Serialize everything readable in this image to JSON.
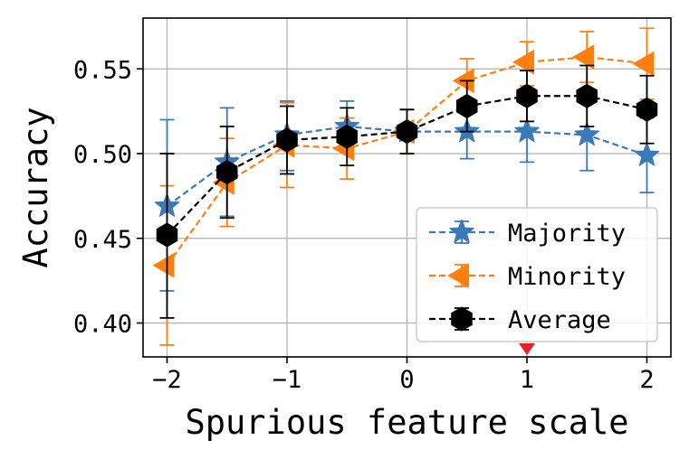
{
  "chart_data": {
    "type": "line",
    "xlabel": "Spurious feature scale",
    "ylabel": "Accuracy",
    "xlim": [
      -2.2,
      2.2
    ],
    "ylim": [
      0.38,
      0.58
    ],
    "x_ticks": [
      -2,
      -1,
      0,
      1,
      2
    ],
    "x_tick_labels": [
      "−2",
      "−1",
      "0",
      "1",
      "2"
    ],
    "y_ticks": [
      0.4,
      0.45,
      0.5,
      0.55
    ],
    "y_tick_labels": [
      "0.40",
      "0.45",
      "0.50",
      "0.55"
    ],
    "grid": true,
    "legend_position": "lower-right",
    "x": [
      -2,
      -1.5,
      -1,
      -0.5,
      0,
      0.5,
      1,
      1.5,
      2
    ],
    "series": [
      {
        "name": "Majority",
        "color": "#3a7ab8",
        "marker": "star",
        "values": [
          0.469,
          0.495,
          0.511,
          0.516,
          0.513,
          0.513,
          0.513,
          0.511,
          0.499
        ],
        "err_low": [
          0.419,
          0.463,
          0.49,
          0.501,
          0.5,
          0.497,
          0.495,
          0.49,
          0.477
        ],
        "err_high": [
          0.52,
          0.527,
          0.531,
          0.531,
          0.526,
          0.529,
          0.531,
          0.531,
          0.521
        ]
      },
      {
        "name": "Minority",
        "color": "#ff7f0e",
        "marker": "triangle-left",
        "values": [
          0.434,
          0.483,
          0.505,
          0.503,
          0.513,
          0.543,
          0.554,
          0.557,
          0.553
        ],
        "err_low": [
          0.387,
          0.457,
          0.48,
          0.485,
          0.5,
          0.53,
          0.54,
          0.542,
          0.532
        ],
        "err_high": [
          0.481,
          0.509,
          0.53,
          0.521,
          0.526,
          0.556,
          0.566,
          0.572,
          0.574
        ]
      },
      {
        "name": "Average",
        "color": "#000000",
        "marker": "hexagon",
        "values": [
          0.452,
          0.489,
          0.508,
          0.51,
          0.513,
          0.528,
          0.534,
          0.534,
          0.526
        ],
        "err_low": [
          0.403,
          0.462,
          0.488,
          0.493,
          0.5,
          0.513,
          0.519,
          0.516,
          0.506
        ],
        "err_high": [
          0.5,
          0.516,
          0.528,
          0.527,
          0.526,
          0.543,
          0.549,
          0.552,
          0.546
        ]
      }
    ],
    "annotations": [
      {
        "type": "marker",
        "shape": "triangle-down",
        "color": "#e8202a",
        "x": 1,
        "position": "bottom-axis"
      }
    ]
  }
}
